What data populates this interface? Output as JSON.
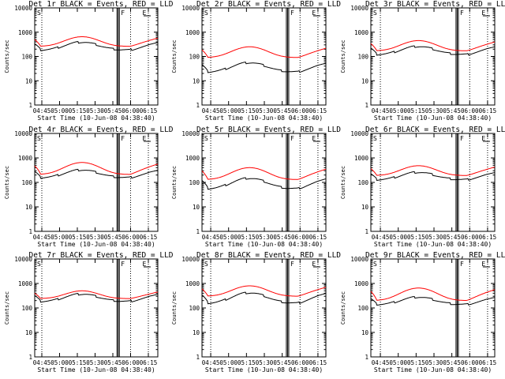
{
  "page": {
    "x_axis_label": "Start Time (10-Jun-08 04:38:40)",
    "y_axis_label": "Counts/sec",
    "x_ticks": [
      "04:45",
      "05:00",
      "05:15",
      "05:30",
      "05:45",
      "06:00",
      "06:15"
    ],
    "y_ticks": [
      "1",
      "10",
      "100",
      "1000",
      "10000"
    ],
    "event_marks": [
      "S",
      "F",
      "E"
    ]
  },
  "chart_data": [
    {
      "type": "line",
      "title": "Det 1r BLACK = Events, RED = LLD",
      "x_range_min": [
        0,
        104
      ],
      "y_log_range": [
        1,
        10000
      ],
      "series": [
        {
          "color": "#000000",
          "base": 200,
          "peak": 420
        },
        {
          "color": "#ff0000",
          "base": 260,
          "peak": 650
        }
      ]
    },
    {
      "type": "line",
      "title": "Det 2r BLACK = Events, RED = LLD",
      "x_range_min": [
        0,
        104
      ],
      "y_log_range": [
        1,
        10000
      ],
      "series": [
        {
          "color": "#000000",
          "base": 25,
          "peak": 60
        },
        {
          "color": "#ff0000",
          "base": 90,
          "peak": 250
        }
      ]
    },
    {
      "type": "line",
      "title": "Det 3r BLACK = Events, RED = LLD",
      "x_range_min": [
        0,
        104
      ],
      "y_log_range": [
        1,
        10000
      ],
      "series": [
        {
          "color": "#000000",
          "base": 130,
          "peak": 280
        },
        {
          "color": "#ff0000",
          "base": 170,
          "peak": 450
        }
      ]
    },
    {
      "type": "line",
      "title": "Det 4r BLACK = Events, RED = LLD",
      "x_range_min": [
        0,
        104
      ],
      "y_log_range": [
        1,
        10000
      ],
      "series": [
        {
          "color": "#000000",
          "base": 170,
          "peak": 350
        },
        {
          "color": "#ff0000",
          "base": 210,
          "peak": 650
        }
      ]
    },
    {
      "type": "line",
      "title": "Det 5r BLACK = Events, RED = LLD",
      "x_range_min": [
        0,
        104
      ],
      "y_log_range": [
        1,
        10000
      ],
      "series": [
        {
          "color": "#000000",
          "base": 60,
          "peak": 160
        },
        {
          "color": "#ff0000",
          "base": 130,
          "peak": 400
        }
      ]
    },
    {
      "type": "line",
      "title": "Det 6r BLACK = Events, RED = LLD",
      "x_range_min": [
        0,
        104
      ],
      "y_log_range": [
        1,
        10000
      ],
      "series": [
        {
          "color": "#000000",
          "base": 140,
          "peak": 280
        },
        {
          "color": "#ff0000",
          "base": 190,
          "peak": 480
        }
      ]
    },
    {
      "type": "line",
      "title": "Det 7r BLACK = Events, RED = LLD",
      "x_range_min": [
        0,
        104
      ],
      "y_log_range": [
        1,
        10000
      ],
      "series": [
        {
          "color": "#000000",
          "base": 200,
          "peak": 400
        },
        {
          "color": "#ff0000",
          "base": 240,
          "peak": 500
        }
      ]
    },
    {
      "type": "line",
      "title": "Det 8r BLACK = Events, RED = LLD",
      "x_range_min": [
        0,
        104
      ],
      "y_log_range": [
        1,
        10000
      ],
      "series": [
        {
          "color": "#000000",
          "base": 170,
          "peak": 450
        },
        {
          "color": "#ff0000",
          "base": 300,
          "peak": 800
        }
      ]
    },
    {
      "type": "line",
      "title": "Det 9r BLACK = Events, RED = LLD",
      "x_range_min": [
        0,
        104
      ],
      "y_log_range": [
        1,
        10000
      ],
      "series": [
        {
          "color": "#000000",
          "base": 150,
          "peak": 300
        },
        {
          "color": "#ff0000",
          "base": 200,
          "peak": 650
        }
      ]
    }
  ]
}
